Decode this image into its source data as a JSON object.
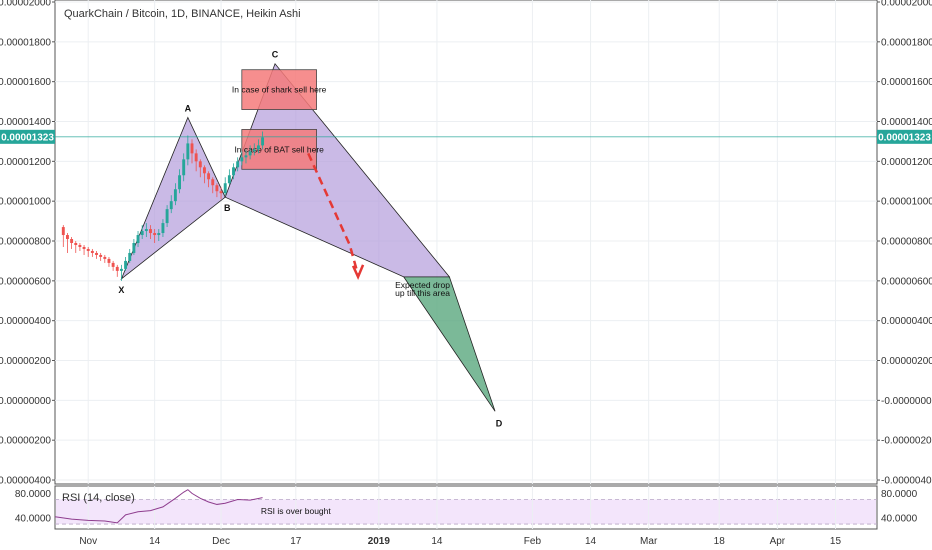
{
  "chart_data": {
    "type": "candlestick",
    "title": "QuarkChain / Bitcoin, 1D, BINANCE, Heikin Ashi",
    "current_price": "0.00001323",
    "current_price_value": 1.323e-05,
    "y_ticks": [
      "0.00002000",
      "0.00001800",
      "0.00001600",
      "0.00001400",
      "0.00001200",
      "0.00001000",
      "0.00000800",
      "0.00000600",
      "0.00000400",
      "0.00000200",
      "-0.00000000",
      "-0.00000200",
      "-0.00000400"
    ],
    "y_tick_values": [
      2e-05,
      1.8e-05,
      1.6e-05,
      1.4e-05,
      1.2e-05,
      1e-05,
      8e-06,
      6e-06,
      4e-06,
      2e-06,
      0,
      -2e-06,
      -4e-06
    ],
    "ylim": [
      -4.2e-06,
      2.01e-05
    ],
    "x_ticks": [
      "Nov",
      "14",
      "Dec",
      "17",
      "2019",
      "14",
      "Feb",
      "14",
      "Mar",
      "18",
      "Apr",
      "15"
    ],
    "x_tick_days": [
      0,
      16,
      32,
      50,
      70,
      84,
      107,
      121,
      135,
      152,
      166,
      180
    ],
    "xlim_days": [
      -8,
      190
    ],
    "candles": [
      {
        "d": -6,
        "o": 8.7,
        "c": 8.3,
        "h": 8.8,
        "l": 7.7
      },
      {
        "d": -5,
        "o": 8.3,
        "c": 8.1,
        "h": 8.4,
        "l": 7.4
      },
      {
        "d": -4,
        "o": 8.1,
        "c": 7.9,
        "h": 8.2,
        "l": 7.6
      },
      {
        "d": -3,
        "o": 7.9,
        "c": 7.8,
        "h": 8.0,
        "l": 7.4
      },
      {
        "d": -2,
        "o": 7.8,
        "c": 7.7,
        "h": 7.9,
        "l": 7.5
      },
      {
        "d": -1,
        "o": 7.7,
        "c": 7.6,
        "h": 7.8,
        "l": 7.3
      },
      {
        "d": 0,
        "o": 7.6,
        "c": 7.5,
        "h": 7.7,
        "l": 7.2
      },
      {
        "d": 1,
        "o": 7.5,
        "c": 7.4,
        "h": 7.6,
        "l": 7.2
      },
      {
        "d": 2,
        "o": 7.4,
        "c": 7.3,
        "h": 7.5,
        "l": 7.1
      },
      {
        "d": 3,
        "o": 7.3,
        "c": 7.2,
        "h": 7.4,
        "l": 7.0
      },
      {
        "d": 4,
        "o": 7.2,
        "c": 7.1,
        "h": 7.3,
        "l": 6.9
      },
      {
        "d": 5,
        "o": 7.1,
        "c": 6.9,
        "h": 7.2,
        "l": 6.7
      },
      {
        "d": 6,
        "o": 6.9,
        "c": 6.7,
        "h": 7.0,
        "l": 6.5
      },
      {
        "d": 7,
        "o": 6.7,
        "c": 6.5,
        "h": 6.8,
        "l": 6.2
      },
      {
        "d": 8,
        "o": 6.5,
        "c": 6.6,
        "h": 6.8,
        "l": 6.0
      },
      {
        "d": 9,
        "o": 6.6,
        "c": 7.0,
        "h": 7.2,
        "l": 6.5
      },
      {
        "d": 10,
        "o": 7.0,
        "c": 7.4,
        "h": 7.6,
        "l": 6.9
      },
      {
        "d": 11,
        "o": 7.4,
        "c": 7.9,
        "h": 8.1,
        "l": 7.3
      },
      {
        "d": 12,
        "o": 7.9,
        "c": 8.3,
        "h": 8.5,
        "l": 7.7
      },
      {
        "d": 13,
        "o": 8.3,
        "c": 8.5,
        "h": 8.8,
        "l": 8.1
      },
      {
        "d": 14,
        "o": 8.5,
        "c": 8.6,
        "h": 8.9,
        "l": 8.2
      },
      {
        "d": 15,
        "o": 8.6,
        "c": 8.4,
        "h": 8.8,
        "l": 8.1
      },
      {
        "d": 16,
        "o": 8.4,
        "c": 8.3,
        "h": 8.6,
        "l": 7.9
      },
      {
        "d": 17,
        "o": 8.3,
        "c": 8.4,
        "h": 8.6,
        "l": 8.0
      },
      {
        "d": 18,
        "o": 8.4,
        "c": 8.9,
        "h": 9.1,
        "l": 8.2
      },
      {
        "d": 19,
        "o": 8.9,
        "c": 9.6,
        "h": 9.8,
        "l": 8.7
      },
      {
        "d": 20,
        "o": 9.6,
        "c": 10.0,
        "h": 10.3,
        "l": 9.4
      },
      {
        "d": 21,
        "o": 10.0,
        "c": 10.6,
        "h": 10.9,
        "l": 9.8
      },
      {
        "d": 22,
        "o": 10.6,
        "c": 11.3,
        "h": 11.6,
        "l": 10.4
      },
      {
        "d": 23,
        "o": 11.3,
        "c": 12.1,
        "h": 12.4,
        "l": 11.0
      },
      {
        "d": 24,
        "o": 12.1,
        "c": 12.9,
        "h": 13.3,
        "l": 11.8
      },
      {
        "d": 25,
        "o": 12.9,
        "c": 12.4,
        "h": 13.1,
        "l": 11.9
      },
      {
        "d": 26,
        "o": 12.4,
        "c": 12.0,
        "h": 12.6,
        "l": 11.5
      },
      {
        "d": 27,
        "o": 12.0,
        "c": 11.7,
        "h": 12.1,
        "l": 11.2
      },
      {
        "d": 28,
        "o": 11.7,
        "c": 11.4,
        "h": 11.8,
        "l": 10.9
      },
      {
        "d": 29,
        "o": 11.4,
        "c": 11.1,
        "h": 11.5,
        "l": 10.7
      },
      {
        "d": 30,
        "o": 11.1,
        "c": 10.8,
        "h": 11.2,
        "l": 10.4
      },
      {
        "d": 31,
        "o": 10.8,
        "c": 10.5,
        "h": 10.9,
        "l": 10.2
      },
      {
        "d": 32,
        "o": 10.5,
        "c": 10.4,
        "h": 10.7,
        "l": 10.1
      },
      {
        "d": 33,
        "o": 10.4,
        "c": 10.9,
        "h": 11.2,
        "l": 10.3
      },
      {
        "d": 34,
        "o": 10.9,
        "c": 11.3,
        "h": 11.6,
        "l": 10.8
      },
      {
        "d": 35,
        "o": 11.3,
        "c": 11.7,
        "h": 11.9,
        "l": 11.1
      },
      {
        "d": 36,
        "o": 11.7,
        "c": 12.0,
        "h": 12.2,
        "l": 11.5
      },
      {
        "d": 37,
        "o": 12.0,
        "c": 12.2,
        "h": 12.5,
        "l": 11.8
      },
      {
        "d": 38,
        "o": 12.2,
        "c": 12.3,
        "h": 12.6,
        "l": 11.9
      },
      {
        "d": 39,
        "o": 12.3,
        "c": 12.5,
        "h": 12.8,
        "l": 12.1
      },
      {
        "d": 40,
        "o": 12.5,
        "c": 12.6,
        "h": 12.9,
        "l": 12.3
      },
      {
        "d": 41,
        "o": 12.6,
        "c": 12.8,
        "h": 13.1,
        "l": 12.4
      },
      {
        "d": 42,
        "o": 12.8,
        "c": 13.2,
        "h": 13.5,
        "l": 12.6
      }
    ],
    "pattern": {
      "points": [
        {
          "label": "X",
          "d": 8,
          "v": 6.1
        },
        {
          "label": "A",
          "d": 24,
          "v": 14.2
        },
        {
          "label": "B",
          "d": 33,
          "v": 10.2
        },
        {
          "label": "C",
          "d": 45,
          "v": 16.9
        },
        {
          "label": "D",
          "d": 98,
          "v": -0.55
        }
      ],
      "expected_zone": {
        "from_d": 76,
        "to_d": 87,
        "level": 6.2
      },
      "labels": {
        "X": "X",
        "A": "A",
        "B": "B",
        "C": "C",
        "D": "D"
      }
    },
    "annotations": {
      "shark": "In case of shark sell here",
      "bat": "In case of BAT sell here",
      "expected_line1": "Expected drop",
      "expected_line2": "up till this area",
      "rsi": "RSI is over bought"
    },
    "boxes": {
      "shark": {
        "from_d": 37,
        "to_d": 55,
        "top": 16.6,
        "bottom": 14.6
      },
      "bat": {
        "from_d": 37,
        "to_d": 55,
        "top": 13.6,
        "bottom": 11.6
      }
    },
    "drop_arrow": [
      [
        53,
        12.4
      ],
      [
        63,
        7.8
      ],
      [
        65,
        6.3
      ]
    ],
    "rsi": {
      "label": "RSI (14, close)",
      "ticks": [
        "80.0000",
        "40.0000"
      ],
      "tick_values": [
        80,
        40
      ],
      "overbought": 70,
      "oversold": 30,
      "ylim": [
        22,
        92
      ],
      "values": [
        {
          "d": -8,
          "v": 42
        },
        {
          "d": -4,
          "v": 38
        },
        {
          "d": 0,
          "v": 36
        },
        {
          "d": 4,
          "v": 35
        },
        {
          "d": 7,
          "v": 32
        },
        {
          "d": 9,
          "v": 45
        },
        {
          "d": 12,
          "v": 50
        },
        {
          "d": 15,
          "v": 52
        },
        {
          "d": 18,
          "v": 58
        },
        {
          "d": 21,
          "v": 72
        },
        {
          "d": 23,
          "v": 82
        },
        {
          "d": 24,
          "v": 86
        },
        {
          "d": 25,
          "v": 80
        },
        {
          "d": 27,
          "v": 72
        },
        {
          "d": 29,
          "v": 66
        },
        {
          "d": 31,
          "v": 62
        },
        {
          "d": 33,
          "v": 64
        },
        {
          "d": 36,
          "v": 70
        },
        {
          "d": 39,
          "v": 69
        },
        {
          "d": 42,
          "v": 73
        }
      ]
    },
    "colors": {
      "up": "#26a69a",
      "down": "#ef5350",
      "pattern_fill": "#b39ddb",
      "drop_fill": "#5aa77e",
      "box_fill": "#f47a7a",
      "price_line": "#26a69a",
      "arrow": "#e53935",
      "rsi_line": "#8e3d8e",
      "rsi_band": "#f3e5fb"
    }
  }
}
